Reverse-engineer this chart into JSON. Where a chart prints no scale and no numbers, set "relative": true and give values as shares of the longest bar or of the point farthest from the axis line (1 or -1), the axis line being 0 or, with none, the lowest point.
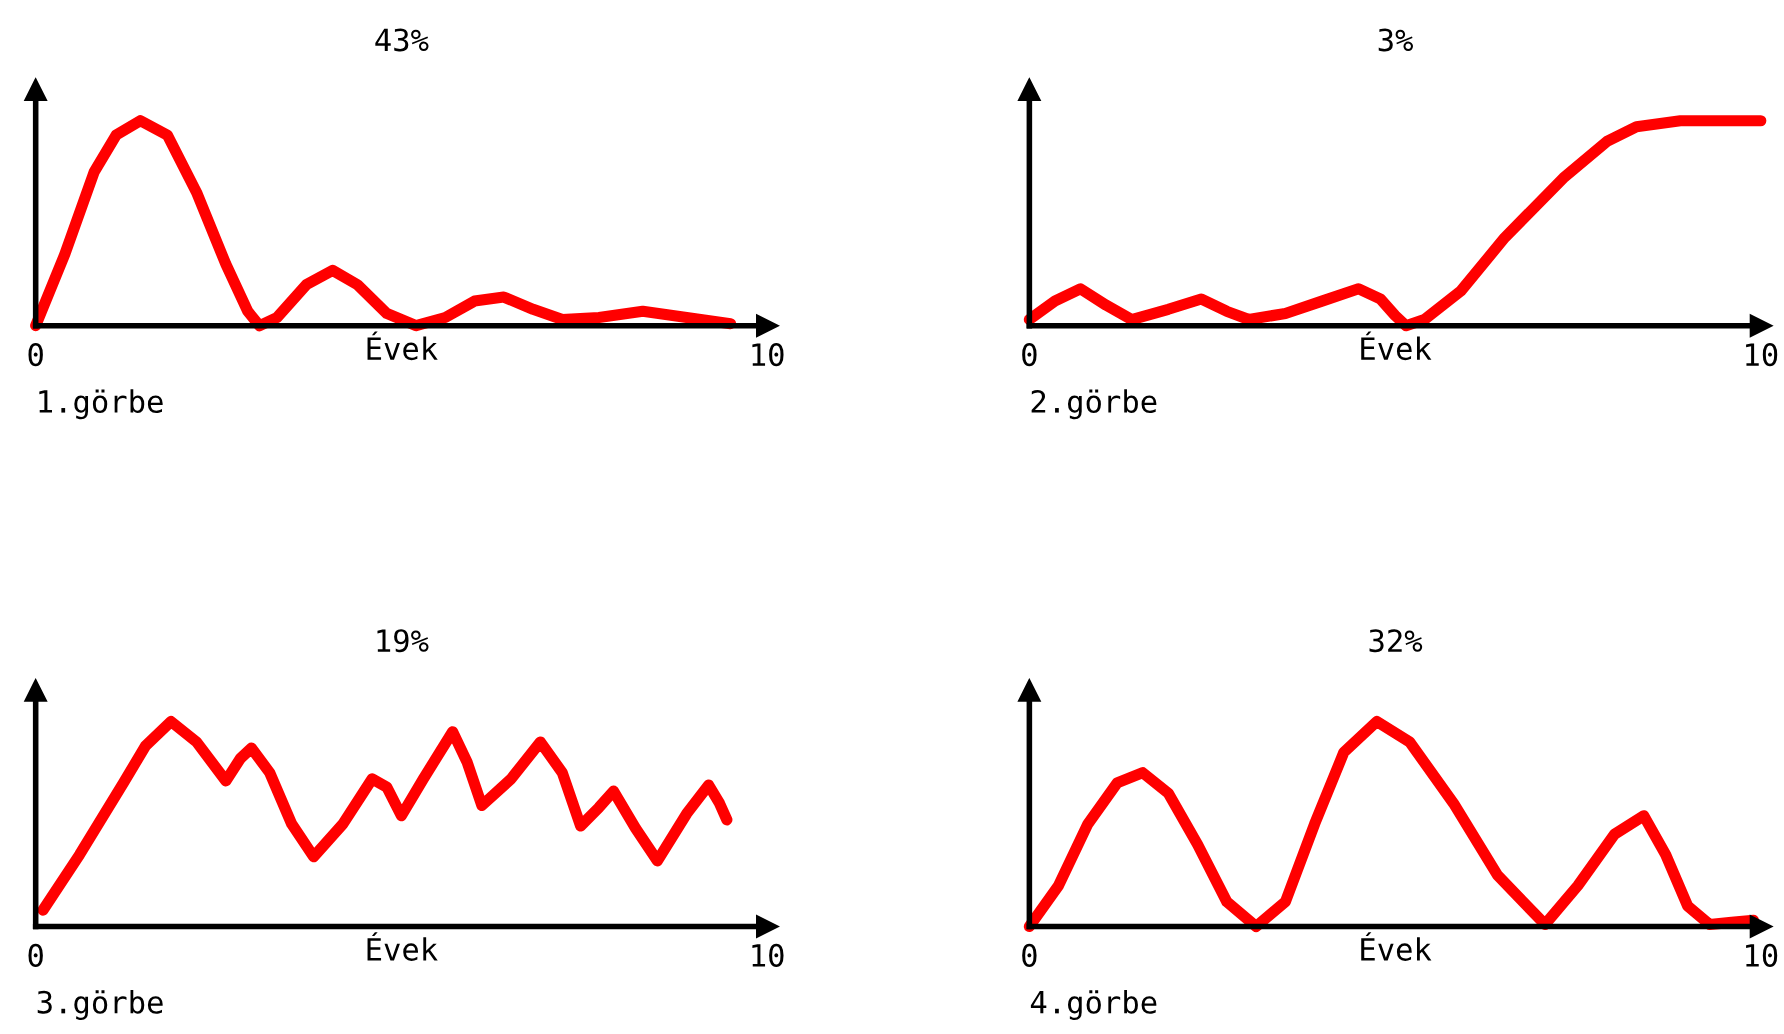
{
  "chart_data": [
    {
      "type": "line",
      "title": "43%",
      "xlabel": "Évek",
      "relative": true,
      "xlim": [
        0,
        10
      ],
      "xticks": [
        0,
        10
      ],
      "annotations": [
        "1.görbe"
      ],
      "grid": false,
      "series": [
        {
          "color": "#ff0000",
          "x": [
            0,
            0.4,
            0.8,
            1.1,
            1.43,
            1.8,
            2.2,
            2.6,
            2.9,
            3.06,
            3.3,
            3.7,
            4.06,
            4.4,
            4.8,
            5.2,
            5.6,
            6.0,
            6.4,
            6.8,
            7.2,
            7.7,
            8.3,
            8.9,
            9.5
          ],
          "values": [
            0,
            0.35,
            0.75,
            0.93,
            1,
            0.93,
            0.65,
            0.3,
            0.07,
            0,
            0.04,
            0.2,
            0.27,
            0.2,
            0.06,
            0,
            0.04,
            0.12,
            0.14,
            0.08,
            0.03,
            0.04,
            0.07,
            0.04,
            0.01
          ]
        }
      ]
    },
    {
      "type": "line",
      "title": "3%",
      "xlabel": "Évek",
      "relative": true,
      "xlim": [
        0,
        10
      ],
      "xticks": [
        0,
        10
      ],
      "annotations": [
        "2.görbe"
      ],
      "grid": false,
      "series": [
        {
          "color": "#ff0000",
          "x": [
            0,
            0.35,
            0.7,
            1.05,
            1.4,
            1.9,
            2.35,
            2.7,
            3.0,
            3.5,
            4.0,
            4.5,
            4.8,
            5.0,
            5.15,
            5.4,
            5.9,
            6.5,
            7.3,
            7.9,
            8.3,
            8.9,
            10
          ],
          "values": [
            0.03,
            0.12,
            0.18,
            0.1,
            0.03,
            0.08,
            0.13,
            0.07,
            0.03,
            0.06,
            0.12,
            0.18,
            0.13,
            0.05,
            0,
            0.03,
            0.17,
            0.43,
            0.72,
            0.9,
            0.97,
            1,
            1
          ]
        }
      ]
    },
    {
      "type": "line",
      "title": "19%",
      "xlabel": "Évek",
      "relative": true,
      "xlim": [
        0,
        10
      ],
      "xticks": [
        0,
        10
      ],
      "annotations": [
        "3.görbe"
      ],
      "grid": false,
      "series": [
        {
          "color": "#ff0000",
          "x": [
            0.1,
            0.6,
            1.2,
            1.5,
            1.85,
            2.2,
            2.6,
            2.8,
            2.95,
            3.2,
            3.5,
            3.8,
            4.2,
            4.6,
            4.8,
            5.0,
            5.3,
            5.7,
            5.9,
            6.1,
            6.5,
            6.9,
            7.2,
            7.45,
            7.7,
            7.9,
            8.2,
            8.5,
            8.9,
            9.2,
            9.35,
            9.45
          ],
          "values": [
            0.08,
            0.35,
            0.7,
            0.88,
            1,
            0.9,
            0.71,
            0.82,
            0.87,
            0.75,
            0.5,
            0.34,
            0.5,
            0.72,
            0.68,
            0.54,
            0.72,
            0.95,
            0.8,
            0.59,
            0.72,
            0.9,
            0.75,
            0.49,
            0.58,
            0.66,
            0.48,
            0.32,
            0.55,
            0.69,
            0.6,
            0.52
          ]
        }
      ]
    },
    {
      "type": "line",
      "title": "32%",
      "xlabel": "Évek",
      "relative": true,
      "xlim": [
        0,
        10
      ],
      "xticks": [
        0,
        10
      ],
      "annotations": [
        "4.görbe"
      ],
      "grid": false,
      "series": [
        {
          "color": "#ff0000",
          "x": [
            0,
            0.4,
            0.8,
            1.2,
            1.55,
            1.9,
            2.3,
            2.7,
            3.1,
            3.5,
            3.9,
            4.3,
            4.75,
            5.2,
            5.8,
            6.4,
            7.05,
            7.5,
            8.0,
            8.4,
            8.7,
            9.0,
            9.3,
            9.6,
            9.9
          ],
          "values": [
            0,
            0.2,
            0.5,
            0.7,
            0.75,
            0.65,
            0.4,
            0.12,
            0,
            0.12,
            0.5,
            0.85,
            1,
            0.9,
            0.6,
            0.25,
            0.01,
            0.2,
            0.45,
            0.54,
            0.35,
            0.1,
            0.01,
            0.02,
            0.03
          ]
        }
      ]
    }
  ]
}
